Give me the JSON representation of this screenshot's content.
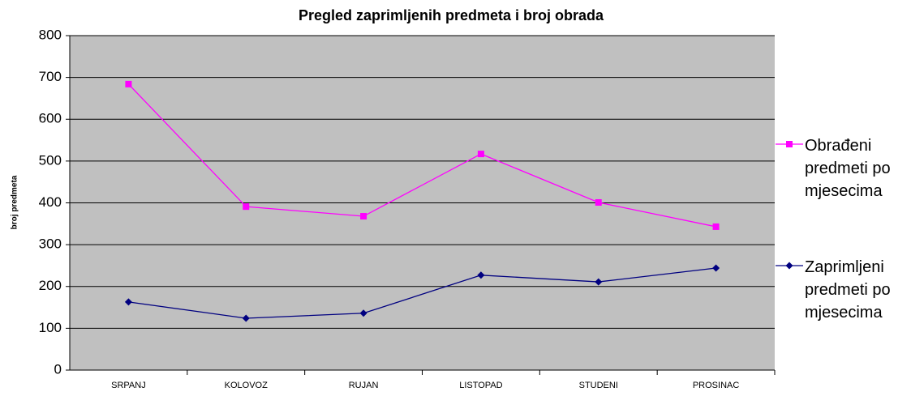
{
  "chart_data": {
    "type": "line",
    "title": "Pregled zaprimljenih predmeta i broj obrada",
    "y_label": "broj predmeta",
    "categories": [
      "SRPANJ",
      "KOLOVOZ",
      "RUJAN",
      "LISTOPAD",
      "STUDENI",
      "PROSINAC"
    ],
    "series": [
      {
        "name": "Obrađeni predmeti po mjesecima",
        "color": "#ff00ff",
        "marker": "square",
        "values": [
          684,
          391,
          368,
          517,
          401,
          343
        ]
      },
      {
        "name": "Zaprimljeni predmeti po mjesecima",
        "color": "#000080",
        "marker": "diamond",
        "values": [
          163,
          124,
          136,
          227,
          211,
          244
        ]
      }
    ],
    "ylim": [
      0,
      800
    ],
    "yticks": [
      0,
      100,
      200,
      300,
      400,
      500,
      600,
      700,
      800
    ],
    "grid": true,
    "legend": "right"
  }
}
